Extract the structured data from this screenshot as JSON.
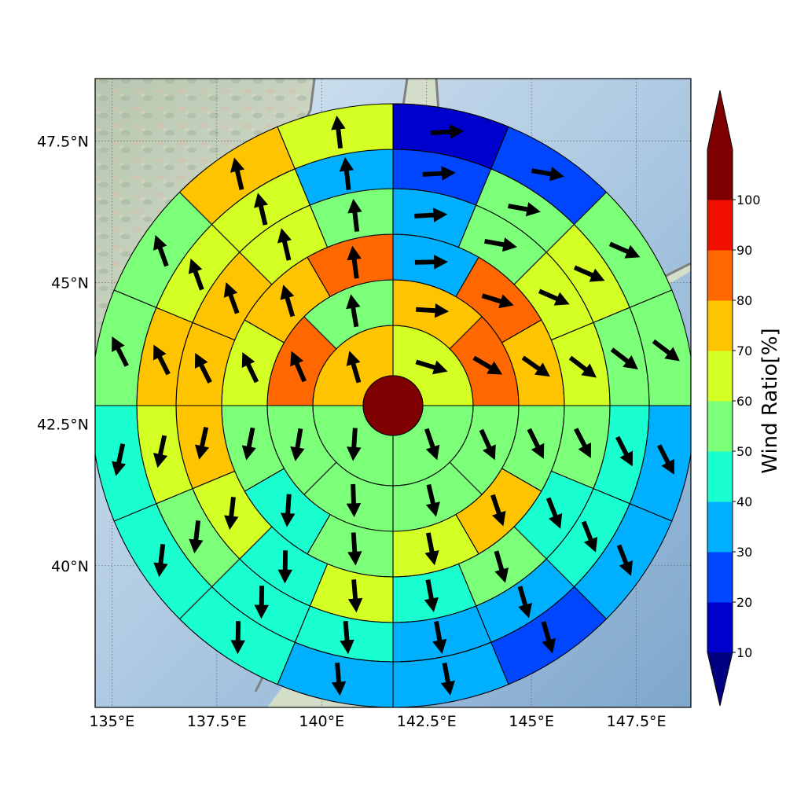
{
  "map": {
    "lon_range": [
      134.6,
      148.8
    ],
    "lat_range": [
      37.5,
      48.6
    ],
    "lon_ticks": [
      {
        "value": 135.0,
        "label": "135°E"
      },
      {
        "value": 137.5,
        "label": "137.5°E"
      },
      {
        "value": 140.0,
        "label": "140°E"
      },
      {
        "value": 142.5,
        "label": "142.5°E"
      },
      {
        "value": 145.0,
        "label": "145°E"
      },
      {
        "value": 147.5,
        "label": "147.5°E"
      }
    ],
    "lat_ticks": [
      {
        "value": 40.0,
        "label": "40°N"
      },
      {
        "value": 42.5,
        "label": "42.5°N"
      },
      {
        "value": 45.0,
        "label": "45°N"
      },
      {
        "value": 47.5,
        "label": "47.5°N"
      }
    ],
    "gridlines": true,
    "center_value_color": "#7f0000",
    "ring_count": 6,
    "sector_counts": [
      4,
      8,
      12,
      16,
      16,
      16
    ],
    "ring_values_clockwise_from_north": [
      [
        60,
        55,
        55,
        70
      ],
      [
        70,
        80,
        55,
        50,
        50,
        55,
        80,
        55
      ],
      [
        35,
        80,
        70,
        55,
        70,
        60,
        50,
        45,
        55,
        60,
        75,
        80
      ],
      [
        35,
        55,
        60,
        60,
        55,
        45,
        55,
        45,
        60,
        45,
        60,
        75,
        75,
        70,
        60,
        55
      ],
      [
        25,
        55,
        60,
        55,
        45,
        45,
        30,
        30,
        45,
        45,
        55,
        60,
        75,
        60,
        60,
        35
      ],
      [
        15,
        25,
        55,
        55,
        35,
        35,
        25,
        30,
        35,
        45,
        40,
        40,
        55,
        55,
        75,
        65
      ]
    ]
  },
  "colorbar": {
    "label": "Wind Ratio[%]",
    "ticks": [
      "10",
      "20",
      "30",
      "40",
      "50",
      "60",
      "70",
      "80",
      "90",
      "100"
    ],
    "colors": [
      "#0000cd",
      "#0046ff",
      "#00b0ff",
      "#1affd0",
      "#7cff79",
      "#d4ff24",
      "#ffc400",
      "#ff6800",
      "#f10f00",
      "#7f0000"
    ],
    "under_color": "#000080",
    "over_color": "#7f0000"
  }
}
